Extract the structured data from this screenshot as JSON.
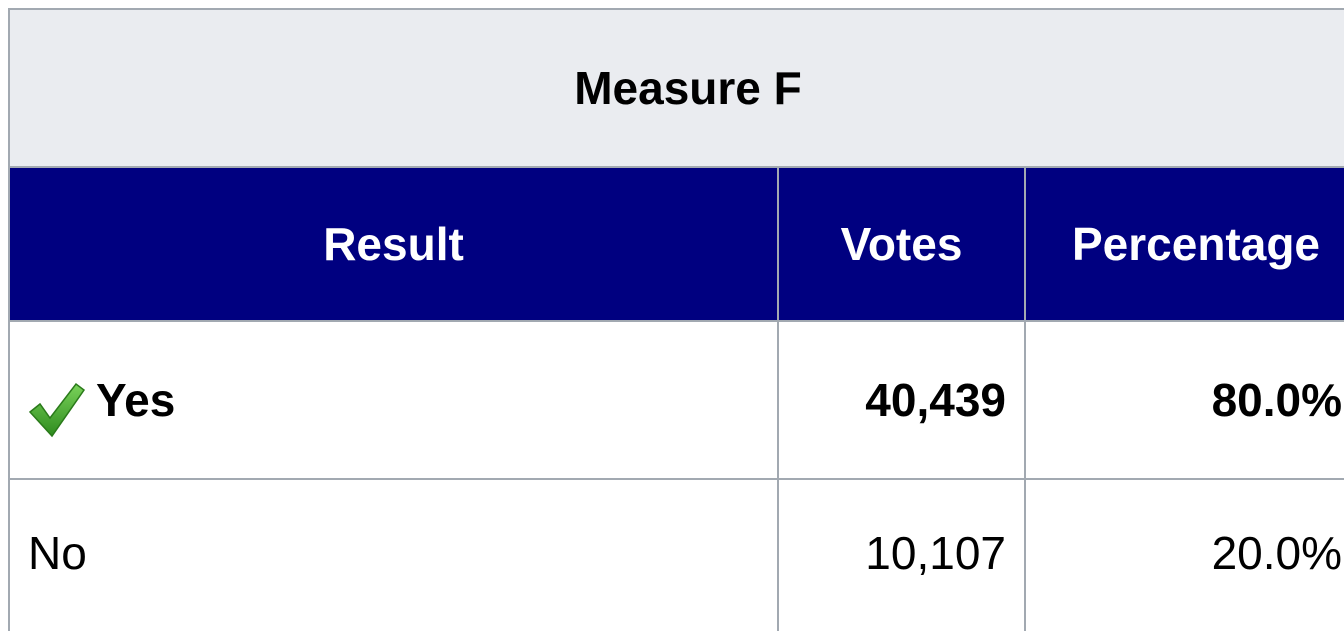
{
  "table": {
    "title": "Measure F",
    "header": [
      "Result",
      "Votes",
      "Percentage"
    ],
    "rows": [
      [
        "Yes",
        "40,439",
        "80.0%"
      ],
      [
        "No",
        "10,107",
        "20.0%"
      ]
    ]
  }
}
